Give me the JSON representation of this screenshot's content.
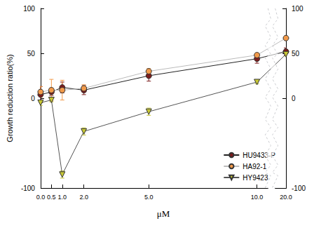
{
  "chart_data": {
    "type": "line",
    "x_label": "μM",
    "y_label": "Growth reduction ratio(%)",
    "x": [
      0,
      0.5,
      1,
      2,
      5,
      10,
      20
    ],
    "series": [
      {
        "name": "HU9433-P",
        "color": "#7b1c1c",
        "marker": "circle",
        "values": [
          4,
          7,
          12,
          9,
          25,
          44,
          52
        ],
        "errors": [
          9,
          4,
          6,
          5,
          6,
          5,
          4
        ]
      },
      {
        "name": "HA92-1",
        "color": "#f29a4a",
        "marker": "circle",
        "values": [
          7,
          9,
          9,
          11,
          30,
          48,
          67
        ],
        "errors": [
          6,
          12,
          11,
          4,
          3,
          2,
          2
        ]
      },
      {
        "name": "HY9423",
        "color": "#c8c834",
        "marker": "triangle-down",
        "values": [
          -5,
          -2,
          -85,
          -37,
          -15,
          18,
          49
        ],
        "errors": [
          3,
          2,
          4,
          4,
          4,
          2,
          2
        ]
      }
    ],
    "xlim": [
      0,
      20
    ],
    "xticks": [
      {
        "value": 0,
        "label": "0.0"
      },
      {
        "value": 0.5,
        "label": "0.5"
      },
      {
        "value": 1,
        "label": "1.0"
      },
      {
        "value": 2,
        "label": "2.0"
      },
      {
        "value": 5,
        "label": "5.0"
      },
      {
        "value": 10,
        "label": "10.0"
      },
      {
        "value": 20,
        "label": "20.0"
      }
    ],
    "ylim": [
      -100,
      100
    ],
    "yticks": [
      -100,
      0,
      50,
      100
    ],
    "y2lim": [
      -100,
      100
    ],
    "y2ticks": [
      -100,
      0,
      50,
      100
    ],
    "legend": "bottom-right",
    "grid": false
  }
}
